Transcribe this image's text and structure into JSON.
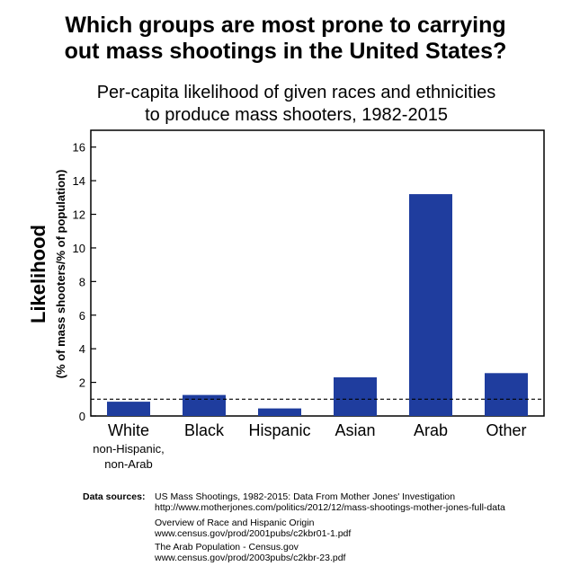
{
  "title_line1": "Which groups are most prone to carrying",
  "title_line2": "out mass shootings in the United States?",
  "subtitle_line1": "Per-capita likelihood of given races and ethnicities",
  "subtitle_line2": "to produce mass shooters, 1982-2015",
  "chart_data": {
    "type": "bar",
    "title": "Which groups are most prone to carrying out mass shootings in the United States?",
    "subtitle": "Per-capita likelihood of given races and ethnicities to produce mass shooters, 1982-2015",
    "ylabel": "Likelihood",
    "ylabel_sub": "(% of mass shooters/% of population)",
    "xlabel": "",
    "categories": [
      "White",
      "Black",
      "Hispanic",
      "Asian",
      "Arab",
      "Other"
    ],
    "category_sublabels": [
      "non-Hispanic,",
      "non-Arab"
    ],
    "values": [
      0.85,
      1.25,
      0.45,
      2.3,
      13.2,
      2.55
    ],
    "ylim": [
      0,
      17
    ],
    "yticks": [
      0,
      2,
      4,
      6,
      8,
      10,
      12,
      14,
      16
    ],
    "reference_line": 1,
    "bar_color": "#1f3d9e",
    "grid": false,
    "legend": "none"
  },
  "sources": {
    "label": "Data sources:",
    "s1_title": "US Mass Shootings, 1982-2015: Data From Mother Jones' Investigation",
    "s1_url": "http://www.motherjones.com/politics/2012/12/mass-shootings-mother-jones-full-data",
    "s2_title": "Overview of Race and Hispanic Origin",
    "s2_url": "www.census.gov/prod/2001pubs/c2kbr01-1.pdf",
    "s3_title": "The Arab Population - Census.gov",
    "s3_url": "www.census.gov/prod/2003pubs/c2kbr-23.pdf"
  }
}
